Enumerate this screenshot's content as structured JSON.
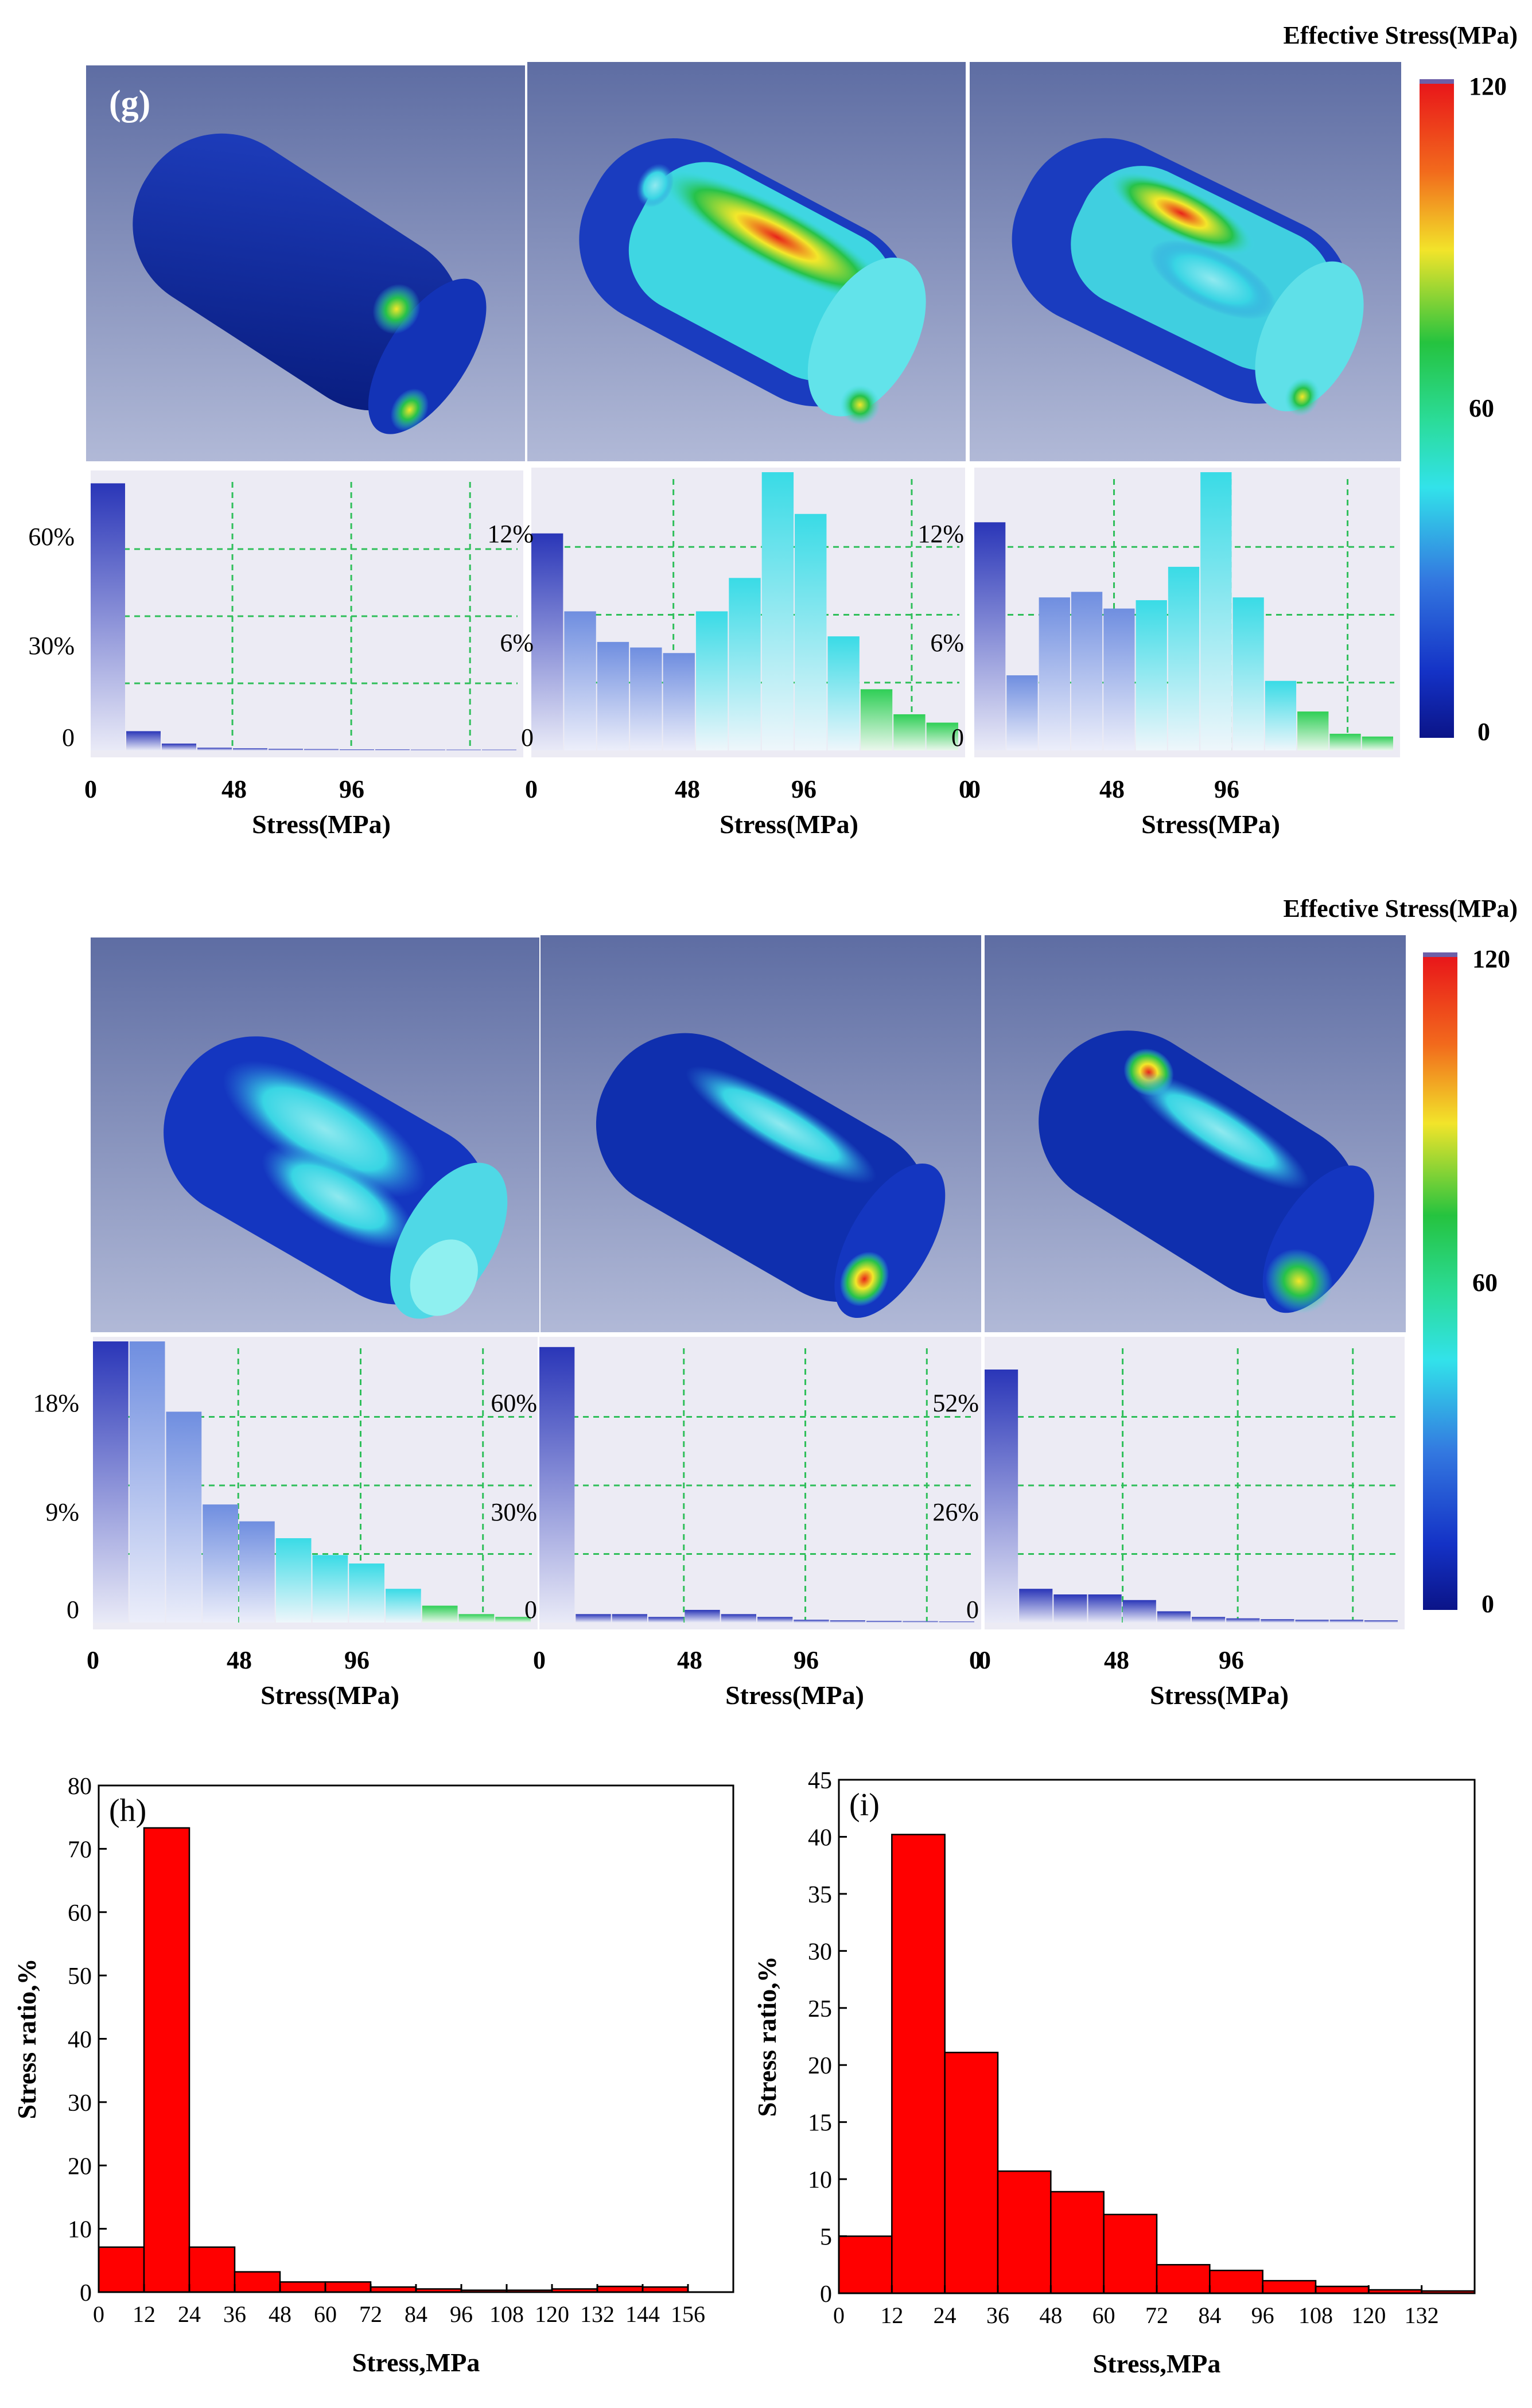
{
  "figure": {
    "panel_g_label": "(g)",
    "colorbar_top": {
      "title": "Effective Stress(MPa)",
      "max": "120",
      "mid": "60",
      "min": "0"
    },
    "colorbar_bottom": {
      "title": "Effective Stress(MPa)",
      "max": "120",
      "mid": "60",
      "min": "0"
    },
    "colors": {
      "sim_background_top": "#6f7fae",
      "sim_background_bottom": "#a7b0cf",
      "body_dark": "#0a2a9e",
      "stress_cyan": "#38e0e8",
      "stress_green": "#26c24a",
      "stress_yellow": "#f3e72a",
      "stress_red": "#e8231a",
      "histogram_grid": "#2fbf5a",
      "histogram_panel": "#ecebf4",
      "bar_red": "#ff0000"
    },
    "sim_histograms": [
      {
        "y_ticks": [
          "60%",
          "30%",
          "0"
        ],
        "x_ticks": [
          "0",
          "48",
          "96"
        ],
        "x_label": "Stress(MPa)",
        "values": [
          0.97,
          0.07,
          0.025,
          0.01,
          0.008,
          0.006,
          0.005,
          0.004,
          0.004,
          0.003,
          0.003,
          0.003
        ],
        "colored": false
      },
      {
        "y_ticks": [
          "12%",
          "6%",
          "0"
        ],
        "x_ticks": [
          "0",
          "48",
          "96"
        ],
        "x_label": "Stress(MPa)",
        "values": [
          0.78,
          0.5,
          0.39,
          0.37,
          0.35,
          0.5,
          0.62,
          1.0,
          0.85,
          0.41,
          0.22,
          0.13,
          0.1
        ],
        "colored": true
      },
      {
        "y_ticks": [
          "12%",
          "6%",
          "0"
        ],
        "x_ticks": [
          "0",
          "48",
          "96"
        ],
        "x_label": "Stress(MPa)",
        "values": [
          0.82,
          0.27,
          0.55,
          0.57,
          0.51,
          0.54,
          0.66,
          1.0,
          0.55,
          0.25,
          0.14,
          0.06,
          0.05
        ],
        "colored": true
      },
      {
        "y_ticks": [
          "18%",
          "9%",
          "0"
        ],
        "x_ticks": [
          "0",
          "48",
          "96"
        ],
        "x_label": "Stress(MPa)",
        "values": [
          1.0,
          1.0,
          0.75,
          0.42,
          0.36,
          0.3,
          0.24,
          0.21,
          0.12,
          0.06,
          0.03,
          0.02
        ],
        "colored": true
      },
      {
        "y_ticks": [
          "60%",
          "30%",
          "0"
        ],
        "x_ticks": [
          "0",
          "48",
          "96"
        ],
        "x_label": "Stress(MPa)",
        "values": [
          0.98,
          0.03,
          0.03,
          0.02,
          0.045,
          0.03,
          0.02,
          0.01,
          0.008,
          0.006,
          0.005,
          0.004
        ],
        "colored": false
      },
      {
        "y_ticks": [
          "52%",
          "26%",
          "0"
        ],
        "x_ticks": [
          "0",
          "48",
          "96"
        ],
        "x_label": "Stress(MPa)",
        "values": [
          0.9,
          0.12,
          0.1,
          0.1,
          0.08,
          0.04,
          0.02,
          0.015,
          0.012,
          0.01,
          0.01,
          0.008
        ],
        "colored": false
      }
    ]
  },
  "chart_data": [
    {
      "type": "bar",
      "panel_label": "(h)",
      "xlabel": "Stress,MPa",
      "ylabel": "Stress ratio,%",
      "ylim": [
        0,
        80
      ],
      "y_ticks": [
        0,
        10,
        20,
        30,
        40,
        50,
        60,
        70,
        80
      ],
      "x_tick_labels": [
        "0",
        "12",
        "24",
        "36",
        "48",
        "60",
        "72",
        "84",
        "96",
        "108",
        "120",
        "132",
        "144",
        "156"
      ],
      "xlim": [
        0,
        168
      ],
      "bin_width": 12,
      "bin_starts": [
        0,
        12,
        24,
        36,
        48,
        60,
        72,
        84,
        96,
        108,
        120,
        132,
        144,
        156
      ],
      "values": [
        7.1,
        73.3,
        7.1,
        3.2,
        1.6,
        1.6,
        0.8,
        0.5,
        0.3,
        0.3,
        0.5,
        0.9,
        0.8,
        0.0
      ],
      "bar_color": "#ff0000"
    },
    {
      "type": "bar",
      "panel_label": "(i)",
      "xlabel": "Stress,MPa",
      "ylabel": "Stress ratio,%",
      "ylim": [
        0,
        45
      ],
      "y_ticks": [
        0,
        5,
        10,
        15,
        20,
        25,
        30,
        35,
        40,
        45
      ],
      "x_tick_labels": [
        "0",
        "12",
        "24",
        "36",
        "48",
        "60",
        "72",
        "84",
        "96",
        "108",
        "120",
        "132"
      ],
      "xlim": [
        0,
        144
      ],
      "bin_width": 12,
      "bin_starts": [
        0,
        12,
        24,
        36,
        48,
        60,
        72,
        84,
        96,
        108,
        120,
        132
      ],
      "values": [
        5.0,
        40.2,
        21.1,
        10.7,
        8.9,
        6.9,
        2.5,
        2.0,
        1.1,
        0.6,
        0.3,
        0.2
      ],
      "bar_color": "#ff0000"
    }
  ]
}
